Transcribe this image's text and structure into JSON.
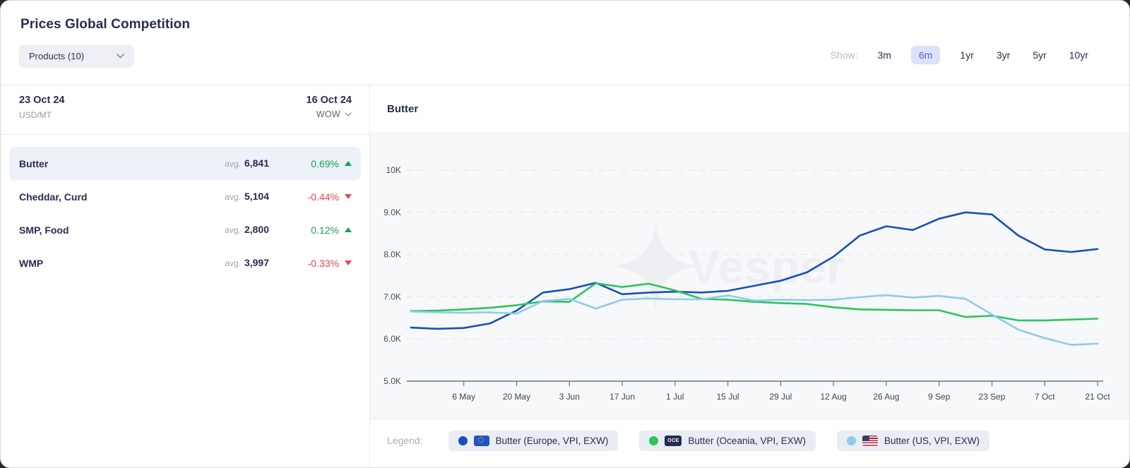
{
  "header": {
    "title": "Prices Global Competition",
    "products_button": {
      "label": "Products (10)"
    },
    "show": {
      "label": "Show:",
      "options": [
        "3m",
        "6m",
        "1yr",
        "3yr",
        "5yr",
        "10yr"
      ],
      "selected": "6m"
    }
  },
  "comparison_panel": {
    "current_date": "23 Oct 24",
    "unit": "USD/MT",
    "compare_date": "16 Oct 24",
    "compare_mode": "WOW",
    "avg_label": "avg.",
    "rows": [
      {
        "name": "Butter",
        "avg": "6,841",
        "change": "0.69%",
        "direction": "up",
        "selected": true
      },
      {
        "name": "Cheddar, Curd",
        "avg": "5,104",
        "change": "-0.44%",
        "direction": "down",
        "selected": false
      },
      {
        "name": "SMP, Food",
        "avg": "2,800",
        "change": "0.12%",
        "direction": "up",
        "selected": false
      },
      {
        "name": "WMP",
        "avg": "3,997",
        "change": "-0.33%",
        "direction": "down",
        "selected": false
      }
    ]
  },
  "chart": {
    "title": "Butter",
    "watermark": "Vesper"
  },
  "legend": {
    "label": "Legend:",
    "items": [
      {
        "label": "Butter (Europe, VPI, EXW)",
        "flag": "eu"
      },
      {
        "label": "Butter (Oceania, VPI, EXW)",
        "flag": "oce",
        "badge": "OCE"
      },
      {
        "label": "Butter (US, VPI, EXW)",
        "flag": "us"
      }
    ]
  },
  "colors": {
    "positive": "#13a355",
    "negative": "#e8454e",
    "selected_range_bg": "#dce2fa",
    "selected_range_text": "#4d64da",
    "selected_row_bg": "#edf1f8"
  },
  "chart_data": {
    "type": "line",
    "unit": "USD/MT",
    "x_interval": "weekly",
    "x_tick_labels": [
      "6 May",
      "20 May",
      "3 Jun",
      "17 Jun",
      "1 Jul",
      "15 Jul",
      "29 Jul",
      "12 Aug",
      "26 Aug",
      "9 Sep",
      "23 Sep",
      "7 Oct",
      "21 Oct"
    ],
    "x_tick_positions": [
      2,
      4,
      6,
      8,
      10,
      12,
      14,
      16,
      18,
      20,
      22,
      24,
      26
    ],
    "y_ticks": [
      "10K",
      "9.0K",
      "8.0K",
      "7.0K",
      "6.0K",
      "5.0K"
    ],
    "y_tick_values": [
      10000,
      9000,
      8000,
      7000,
      6000,
      5000
    ],
    "ylim": [
      5000,
      10000
    ],
    "series": [
      {
        "name": "Butter (Europe, VPI, EXW)",
        "region": "Europe",
        "color": "#1550bc",
        "values": [
          6270,
          6240,
          6260,
          6370,
          6670,
          7100,
          7180,
          7330,
          7060,
          7100,
          7120,
          7100,
          7140,
          7260,
          7380,
          7580,
          7950,
          8450,
          8670,
          8580,
          8850,
          9000,
          8950,
          8450,
          8120,
          8060,
          8130
        ]
      },
      {
        "name": "Butter (Oceania, VPI, EXW)",
        "region": "Oceania",
        "color": "#2cc45c",
        "values": [
          6660,
          6670,
          6700,
          6740,
          6800,
          6890,
          6880,
          7320,
          7230,
          7310,
          7150,
          6950,
          6930,
          6880,
          6850,
          6830,
          6750,
          6700,
          6690,
          6680,
          6680,
          6520,
          6550,
          6440,
          6440,
          6460,
          6480
        ]
      },
      {
        "name": "Butter (US, VPI, EXW)",
        "region": "US",
        "color": "#8ecbeb",
        "values": [
          6650,
          6630,
          6620,
          6630,
          6600,
          6900,
          6950,
          6720,
          6930,
          6960,
          6940,
          6940,
          7030,
          6910,
          6930,
          6920,
          6930,
          6990,
          7040,
          6980,
          7020,
          6950,
          6580,
          6220,
          6020,
          5860,
          5890
        ]
      }
    ]
  }
}
